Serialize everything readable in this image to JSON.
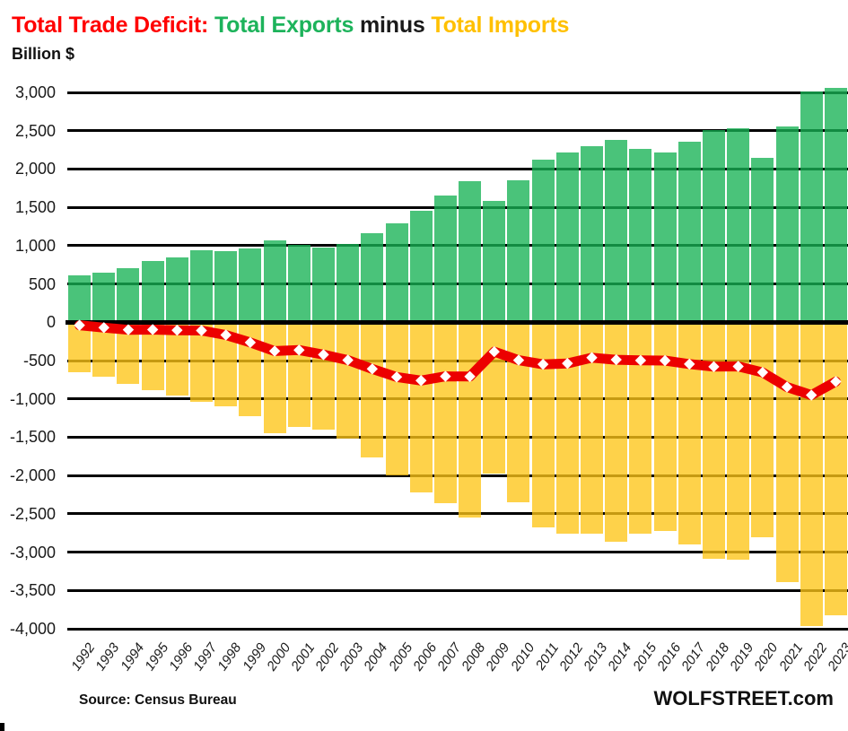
{
  "title": {
    "deficit": "Total Trade Deficit:",
    "exports": "Total Exports",
    "minus": "minus",
    "imports": "Total Imports"
  },
  "subtitle": "Billion $",
  "footer": {
    "source": "Source: Census Bureau",
    "brand": "WOLFSTREET.com"
  },
  "colors": {
    "title_deficit": "#FF0000",
    "title_exports": "#1DB35B",
    "title_minus": "#1A1A1A",
    "title_imports": "#FFC000",
    "export_bar": "#17B254",
    "import_bar": "#FEC517",
    "bar_opacity": 0.78,
    "deficit_line": "#EC0000",
    "marker_fill": "#FFFFFF",
    "gridline": "#000000",
    "axis_text": "#1A1A1A"
  },
  "chart_data": {
    "type": "bar",
    "subtype": "combo-bar-line",
    "title": "Total Trade Deficit: Total Exports minus Total Imports",
    "ylabel": "Billion $",
    "xlabel": "",
    "grid": true,
    "legend_position": "none",
    "ylim": [
      -4000,
      3000
    ],
    "ytick_interval": 500,
    "yticks": [
      3000,
      2500,
      2000,
      1500,
      1000,
      500,
      0,
      -500,
      -1000,
      -1500,
      -2000,
      -2500,
      -3000,
      -3500,
      -4000
    ],
    "categories": [
      "1992",
      "1993",
      "1994",
      "1995",
      "1996",
      "1997",
      "1998",
      "1999",
      "2000",
      "2001",
      "2002",
      "2003",
      "2004",
      "2005",
      "2006",
      "2007",
      "2008",
      "2009",
      "2010",
      "2011",
      "2012",
      "2013",
      "2014",
      "2015",
      "2016",
      "2017",
      "2018",
      "2019",
      "2020",
      "2021",
      "2022",
      "2023"
    ],
    "series": [
      {
        "name": "Total Exports",
        "type": "bar",
        "values": [
          617,
          643,
          704,
          794,
          852,
          934,
          933,
          966,
          1073,
          1006,
          975,
          1020,
          1161,
          1286,
          1457,
          1653,
          1842,
          1588,
          1852,
          2127,
          2220,
          2294,
          2377,
          2267,
          2221,
          2357,
          2510,
          2528,
          2149,
          2550,
          3012,
          3053
        ]
      },
      {
        "name": "Total Imports",
        "type": "bar",
        "values": [
          -656,
          -713,
          -802,
          -890,
          -956,
          -1042,
          -1099,
          -1230,
          -1449,
          -1369,
          -1398,
          -1514,
          -1770,
          -2000,
          -2218,
          -2359,
          -2550,
          -1972,
          -2347,
          -2676,
          -2757,
          -2756,
          -2866,
          -2765,
          -2721,
          -2903,
          -3090,
          -3104,
          -2803,
          -3395,
          -3963,
          -3827
        ]
      },
      {
        "name": "Total Trade Deficit",
        "type": "line",
        "marker": "diamond",
        "values": [
          -39,
          -70,
          -98,
          -96,
          -104,
          -108,
          -166,
          -264,
          -376,
          -363,
          -423,
          -494,
          -609,
          -714,
          -761,
          -706,
          -708,
          -384,
          -495,
          -549,
          -537,
          -462,
          -489,
          -498,
          -500,
          -546,
          -580,
          -576,
          -654,
          -845,
          -951,
          -774
        ]
      }
    ]
  }
}
